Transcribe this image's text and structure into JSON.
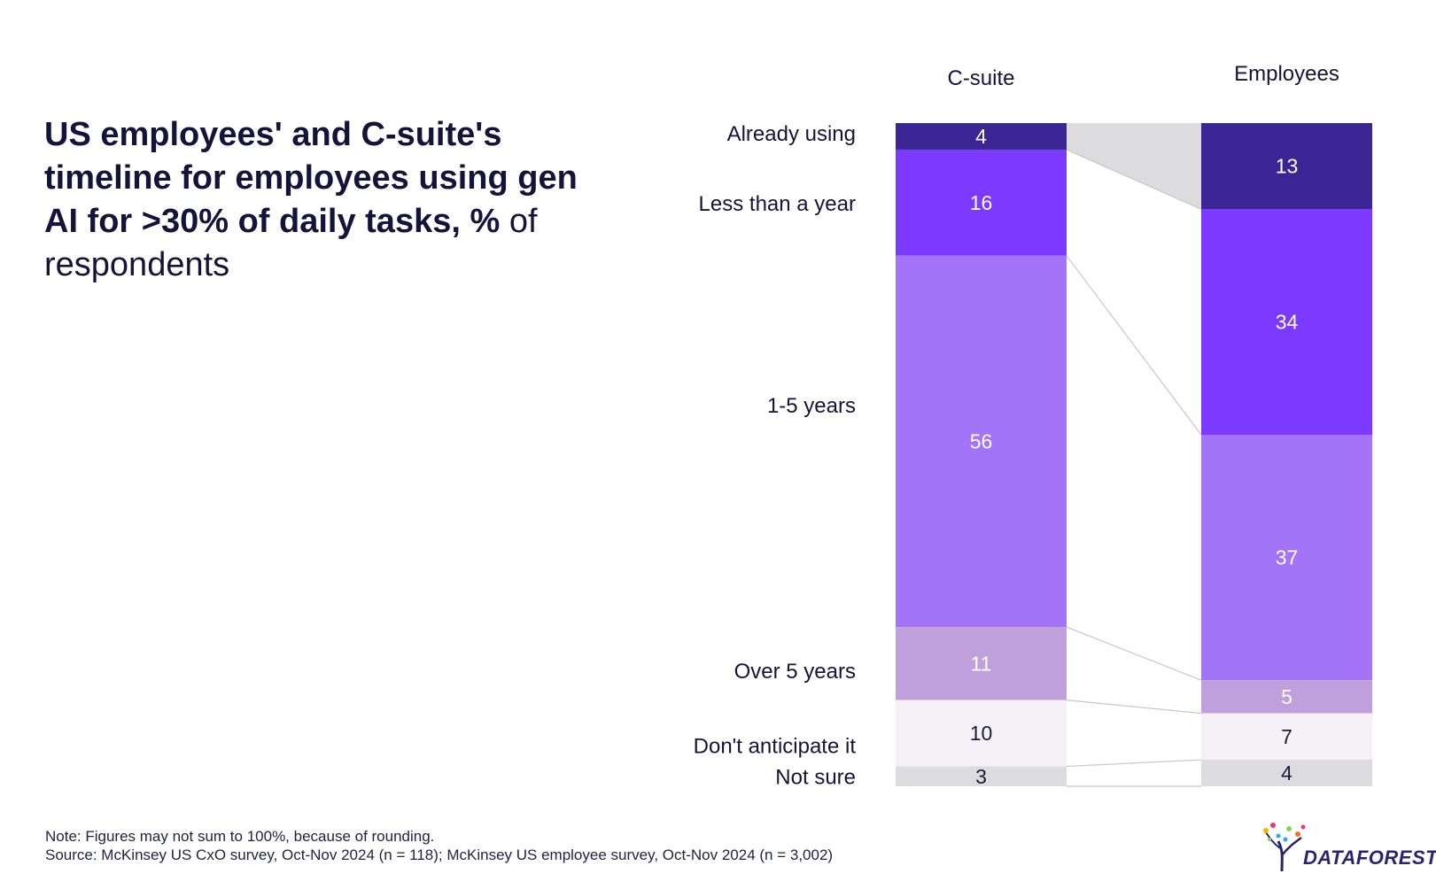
{
  "title": {
    "bold": "US employees' and C-suite's timeline for employees using gen AI for >30% of daily tasks, %",
    "normal": "of respondents"
  },
  "chart_data": {
    "type": "bar",
    "subtype": "stacked-100-percent",
    "categories": [
      "C-suite",
      "Employees"
    ],
    "segments": [
      "Already using",
      "Less than a year",
      "1-5 years",
      "Over 5 years",
      "Don't anticipate it",
      "Not sure"
    ],
    "series": [
      {
        "name": "Already using",
        "values": [
          4,
          13
        ],
        "color": "#3b2494"
      },
      {
        "name": "Less than a year",
        "values": [
          16,
          34
        ],
        "color": "#7c3aff"
      },
      {
        "name": "1-5 years",
        "values": [
          56,
          37
        ],
        "color": "#a374f8"
      },
      {
        "name": "Over 5 years",
        "values": [
          11,
          5
        ],
        "color": "#bfa0dc"
      },
      {
        "name": "Don't anticipate it",
        "values": [
          10,
          7
        ],
        "color": "#f4f2f7"
      },
      {
        "name": "Not sure",
        "values": [
          3,
          4
        ],
        "color": "#dcdcdf"
      }
    ],
    "label_colors": [
      "#ffffff",
      "#ffffff",
      "#ffffff",
      "#ffffff",
      "#1b1b3a",
      "#1b1b3a"
    ],
    "connector_highlight_color": "#dcdcdf",
    "connector_line_color": "#c8c8cc"
  },
  "footer": {
    "note": "Note: Figures may not sum to 100%, because of rounding.",
    "source": "Source: McKinsey US CxO survey, Oct-Nov 2024 (n = 118); McKinsey US employee survey, Oct-Nov 2024 (n = 3,002)"
  },
  "logo": {
    "text": "DATAFOREST"
  }
}
